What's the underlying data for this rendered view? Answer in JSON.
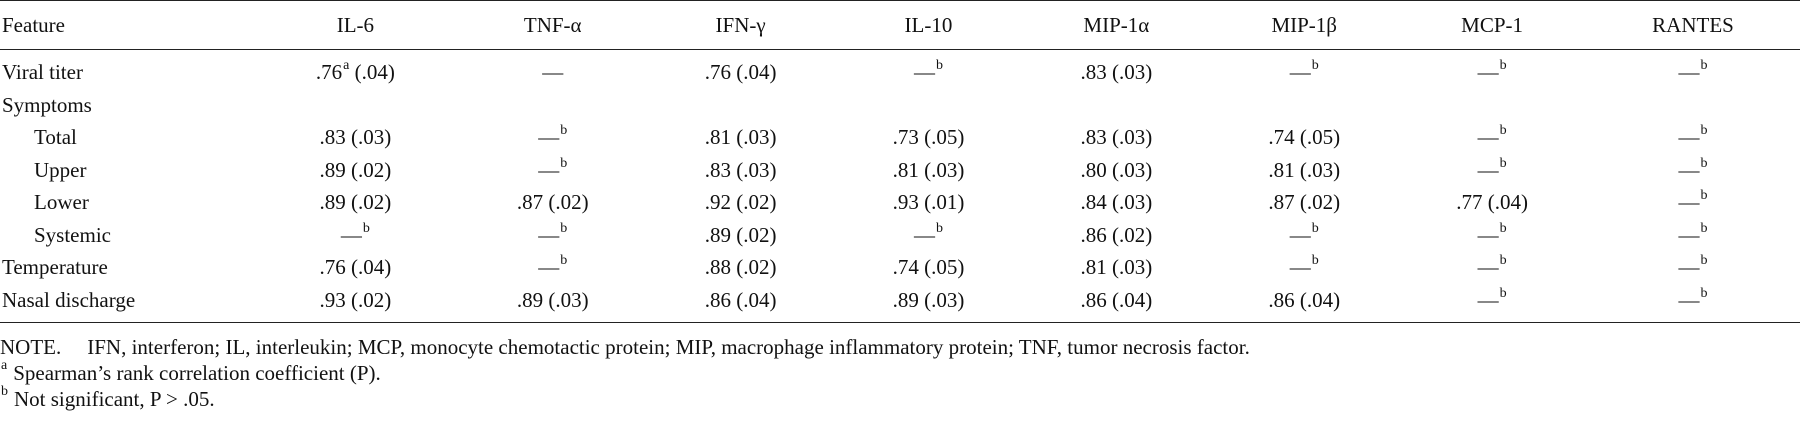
{
  "table": {
    "columns": [
      "Feature",
      "IL-6",
      "TNF-α",
      "IFN-γ",
      "IL-10",
      "MIP-1α",
      "MIP-1β",
      "MCP-1",
      "RANTES"
    ],
    "rows": [
      {
        "label": "Viral titer",
        "indent": false,
        "cells": [
          {
            "v": ".76",
            "sup": "a",
            "tail": " (.04)"
          },
          {
            "v": "—",
            "sup": ""
          },
          {
            "v": ".76 (.04)",
            "sup": ""
          },
          {
            "v": "—",
            "sup": "b"
          },
          {
            "v": ".83 (.03)",
            "sup": ""
          },
          {
            "v": "—",
            "sup": "b"
          },
          {
            "v": "—",
            "sup": "b"
          },
          {
            "v": "—",
            "sup": "b"
          }
        ]
      },
      {
        "label": "Symptoms",
        "indent": false,
        "cells": []
      },
      {
        "label": "Total",
        "indent": true,
        "cells": [
          {
            "v": ".83 (.03)",
            "sup": ""
          },
          {
            "v": "—",
            "sup": "b"
          },
          {
            "v": ".81 (.03)",
            "sup": ""
          },
          {
            "v": ".73 (.05)",
            "sup": ""
          },
          {
            "v": ".83 (.03)",
            "sup": ""
          },
          {
            "v": ".74 (.05)",
            "sup": ""
          },
          {
            "v": "—",
            "sup": "b"
          },
          {
            "v": "—",
            "sup": "b"
          }
        ]
      },
      {
        "label": "Upper",
        "indent": true,
        "cells": [
          {
            "v": ".89 (.02)",
            "sup": ""
          },
          {
            "v": "—",
            "sup": "b"
          },
          {
            "v": ".83 (.03)",
            "sup": ""
          },
          {
            "v": ".81 (.03)",
            "sup": ""
          },
          {
            "v": ".80 (.03)",
            "sup": ""
          },
          {
            "v": ".81 (.03)",
            "sup": ""
          },
          {
            "v": "—",
            "sup": "b"
          },
          {
            "v": "—",
            "sup": "b"
          }
        ]
      },
      {
        "label": "Lower",
        "indent": true,
        "cells": [
          {
            "v": ".89 (.02)",
            "sup": ""
          },
          {
            "v": ".87 (.02)",
            "sup": ""
          },
          {
            "v": ".92 (.02)",
            "sup": ""
          },
          {
            "v": ".93 (.01)",
            "sup": ""
          },
          {
            "v": ".84 (.03)",
            "sup": ""
          },
          {
            "v": ".87 (.02)",
            "sup": ""
          },
          {
            "v": ".77 (.04)",
            "sup": ""
          },
          {
            "v": "—",
            "sup": "b"
          }
        ]
      },
      {
        "label": "Systemic",
        "indent": true,
        "cells": [
          {
            "v": "—",
            "sup": "b"
          },
          {
            "v": "—",
            "sup": "b"
          },
          {
            "v": ".89 (.02)",
            "sup": ""
          },
          {
            "v": "—",
            "sup": "b"
          },
          {
            "v": ".86 (.02)",
            "sup": ""
          },
          {
            "v": "—",
            "sup": "b"
          },
          {
            "v": "—",
            "sup": "b"
          },
          {
            "v": "—",
            "sup": "b"
          }
        ]
      },
      {
        "label": "Temperature",
        "indent": false,
        "cells": [
          {
            "v": ".76 (.04)",
            "sup": ""
          },
          {
            "v": "—",
            "sup": "b"
          },
          {
            "v": ".88 (.02)",
            "sup": ""
          },
          {
            "v": ".74 (.05)",
            "sup": ""
          },
          {
            "v": ".81 (.03)",
            "sup": ""
          },
          {
            "v": "—",
            "sup": "b"
          },
          {
            "v": "—",
            "sup": "b"
          },
          {
            "v": "—",
            "sup": "b"
          }
        ]
      },
      {
        "label": "Nasal discharge",
        "indent": false,
        "cells": [
          {
            "v": ".93 (.02)",
            "sup": ""
          },
          {
            "v": ".89 (.03)",
            "sup": ""
          },
          {
            "v": ".86 (.04)",
            "sup": ""
          },
          {
            "v": ".89 (.03)",
            "sup": ""
          },
          {
            "v": ".86 (.04)",
            "sup": ""
          },
          {
            "v": ".86 (.04)",
            "sup": ""
          },
          {
            "v": "—",
            "sup": "b"
          },
          {
            "v": "—",
            "sup": "b"
          }
        ]
      }
    ]
  },
  "notes": {
    "lead": "NOTE.",
    "text": "IFN, interferon; IL, interleukin; MCP, monocyte chemotactic protein; MIP, macrophage inflammatory protein; TNF, tumor necrosis factor.",
    "footnotes": [
      {
        "mark": "a",
        "text": "Spearman’s rank correlation coefficient (P)."
      },
      {
        "mark": "b",
        "text": "Not significant, P > .05."
      }
    ]
  }
}
